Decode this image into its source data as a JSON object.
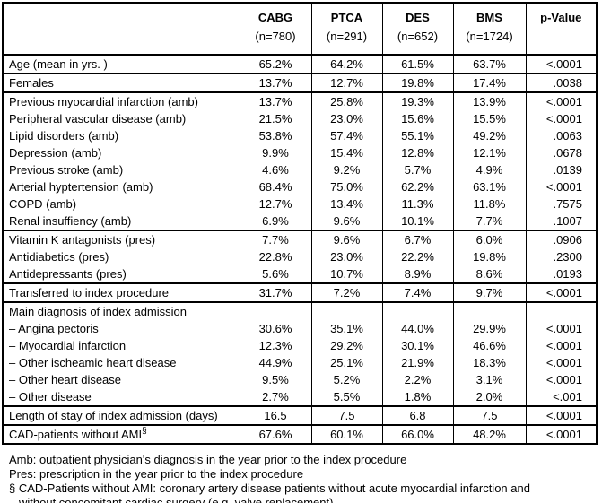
{
  "table": {
    "columns": [
      {
        "label": "CABG",
        "n": "(n=780)"
      },
      {
        "label": "PTCA",
        "n": "(n=291)"
      },
      {
        "label": "DES",
        "n": "(n=652)"
      },
      {
        "label": "BMS",
        "n": "(n=1724)"
      },
      {
        "label": "p-Value",
        "n": ""
      }
    ],
    "rows": [
      {
        "label": "Age (mean in yrs. )",
        "values": [
          "65.2%",
          "64.2%",
          "61.5%",
          "63.7%"
        ],
        "p": "<.0001",
        "section_end": true
      },
      {
        "label": "Females",
        "values": [
          "13.7%",
          "12.7%",
          "19.8%",
          "17.4%"
        ],
        "p": ".0038",
        "section_end": true
      },
      {
        "label": "Previous myocardial infarction (amb)",
        "values": [
          "13.7%",
          "25.8%",
          "19.3%",
          "13.9%"
        ],
        "p": "<.0001"
      },
      {
        "label": "Peripheral vascular disease (amb)",
        "values": [
          "21.5%",
          "23.0%",
          "15.6%",
          "15.5%"
        ],
        "p": "<.0001"
      },
      {
        "label": "Lipid disorders (amb)",
        "values": [
          "53.8%",
          "57.4%",
          "55.1%",
          "49.2%"
        ],
        "p": ".0063"
      },
      {
        "label": "Depression (amb)",
        "values": [
          "9.9%",
          "15.4%",
          "12.8%",
          "12.1%"
        ],
        "p": ".0678"
      },
      {
        "label": "Previous stroke (amb)",
        "values": [
          "4.6%",
          "9.2%",
          "5.7%",
          "4.9%"
        ],
        "p": ".0139"
      },
      {
        "label": "Arterial hyptertension (amb)",
        "values": [
          "68.4%",
          "75.0%",
          "62.2%",
          "63.1%"
        ],
        "p": "<.0001"
      },
      {
        "label": "COPD (amb)",
        "values": [
          "12.7%",
          "13.4%",
          "11.3%",
          "11.8%"
        ],
        "p": ".7575"
      },
      {
        "label": "Renal insuffiency (amb)",
        "values": [
          "6.9%",
          "9.6%",
          "10.1%",
          "7.7%"
        ],
        "p": ".1007",
        "section_end": true
      },
      {
        "label": "Vitamin K antagonists (pres)",
        "values": [
          "7.7%",
          "9.6%",
          "6.7%",
          "6.0%"
        ],
        "p": ".0906"
      },
      {
        "label": "Antidiabetics (pres)",
        "values": [
          "22.8%",
          "23.0%",
          "22.2%",
          "19.8%"
        ],
        "p": ".2300"
      },
      {
        "label": "Antidepressants (pres)",
        "values": [
          "5.6%",
          "10.7%",
          "8.9%",
          "8.6%"
        ],
        "p": ".0193",
        "section_end": true
      },
      {
        "label": "Transferred to index procedure",
        "values": [
          "31.7%",
          "7.2%",
          "7.4%",
          "9.7%"
        ],
        "p": "<.0001",
        "section_end": true
      },
      {
        "label": "Main diagnosis of index admission",
        "values": [
          "",
          "",
          "",
          ""
        ],
        "p": ""
      },
      {
        "label": "– Angina pectoris",
        "values": [
          "30.6%",
          "35.1%",
          "44.0%",
          "29.9%"
        ],
        "p": "<.0001"
      },
      {
        "label": "– Myocardial infarction",
        "values": [
          "12.3%",
          "29.2%",
          "30.1%",
          "46.6%"
        ],
        "p": "<.0001"
      },
      {
        "label": "– Other ischeamic heart disease",
        "values": [
          "44.9%",
          "25.1%",
          "21.9%",
          "18.3%"
        ],
        "p": "<.0001"
      },
      {
        "label": "– Other heart disease",
        "values": [
          "9.5%",
          "5.2%",
          "2.2%",
          "3.1%"
        ],
        "p": "<.0001"
      },
      {
        "label": "– Other disease",
        "values": [
          "2.7%",
          "5.5%",
          "1.8%",
          "2.0%"
        ],
        "p": "<.001",
        "section_end": true
      },
      {
        "label": "Length of stay of index admission (days)",
        "values": [
          "16.5",
          "7.5",
          "6.8",
          "7.5"
        ],
        "p": "<.0001",
        "section_end": true
      },
      {
        "label": "CAD-patients without AMI",
        "label_sup": "§",
        "values": [
          "67.6%",
          "60.1%",
          "66.0%",
          "48.2%"
        ],
        "p": "<.0001"
      }
    ]
  },
  "footnotes": [
    {
      "text": "Amb: outpatient physician's diagnosis in the year prior to the index procedure",
      "indent": false
    },
    {
      "text": "Pres: prescription in the year prior to the index procedure",
      "indent": false
    },
    {
      "text": "§ CAD-Patients without AMI: coronary artery disease patients without acute myocardial infarction and",
      "indent": false
    },
    {
      "text": "without concomitant cardiac surgery (e.g. valve replacement)",
      "indent": true
    }
  ]
}
